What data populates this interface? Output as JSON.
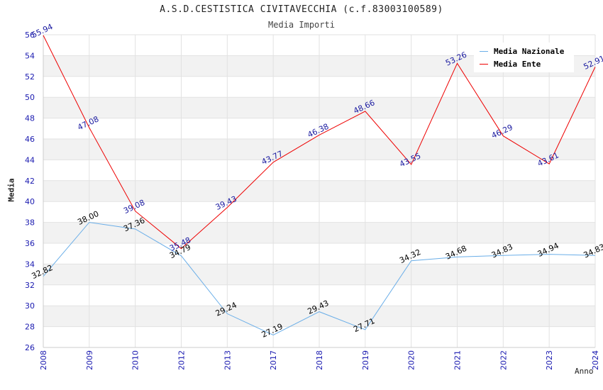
{
  "chart_data": {
    "type": "line",
    "title": "A.S.D.CESTISTICA CIVITAVECCHIA (c.f.83003100589)",
    "subtitle": "Media Importi",
    "xlabel": "Anno",
    "ylabel": "Media",
    "ylim": [
      26,
      56
    ],
    "yticks": [
      26,
      28,
      30,
      32,
      34,
      36,
      38,
      40,
      42,
      44,
      46,
      48,
      50,
      52,
      54,
      56
    ],
    "categories": [
      "2008",
      "2009",
      "2010",
      "2012",
      "2013",
      "2017",
      "2018",
      "2019",
      "2020",
      "2021",
      "2022",
      "2023",
      "2024"
    ],
    "grid": true,
    "legend_position": "top-right",
    "series": [
      {
        "name": "Media Nazionale",
        "color": "#6aaee8",
        "label_color": "#000000",
        "values": [
          32.82,
          38.0,
          37.36,
          34.79,
          29.24,
          27.19,
          29.43,
          27.71,
          34.32,
          34.68,
          34.83,
          34.94,
          34.83
        ]
      },
      {
        "name": "Media Ente",
        "color": "#ee0000",
        "label_color": "#1a1aa0",
        "values": [
          55.94,
          47.08,
          39.08,
          35.48,
          39.43,
          43.77,
          46.38,
          48.66,
          43.55,
          53.26,
          46.29,
          43.61,
          52.91
        ]
      }
    ]
  }
}
